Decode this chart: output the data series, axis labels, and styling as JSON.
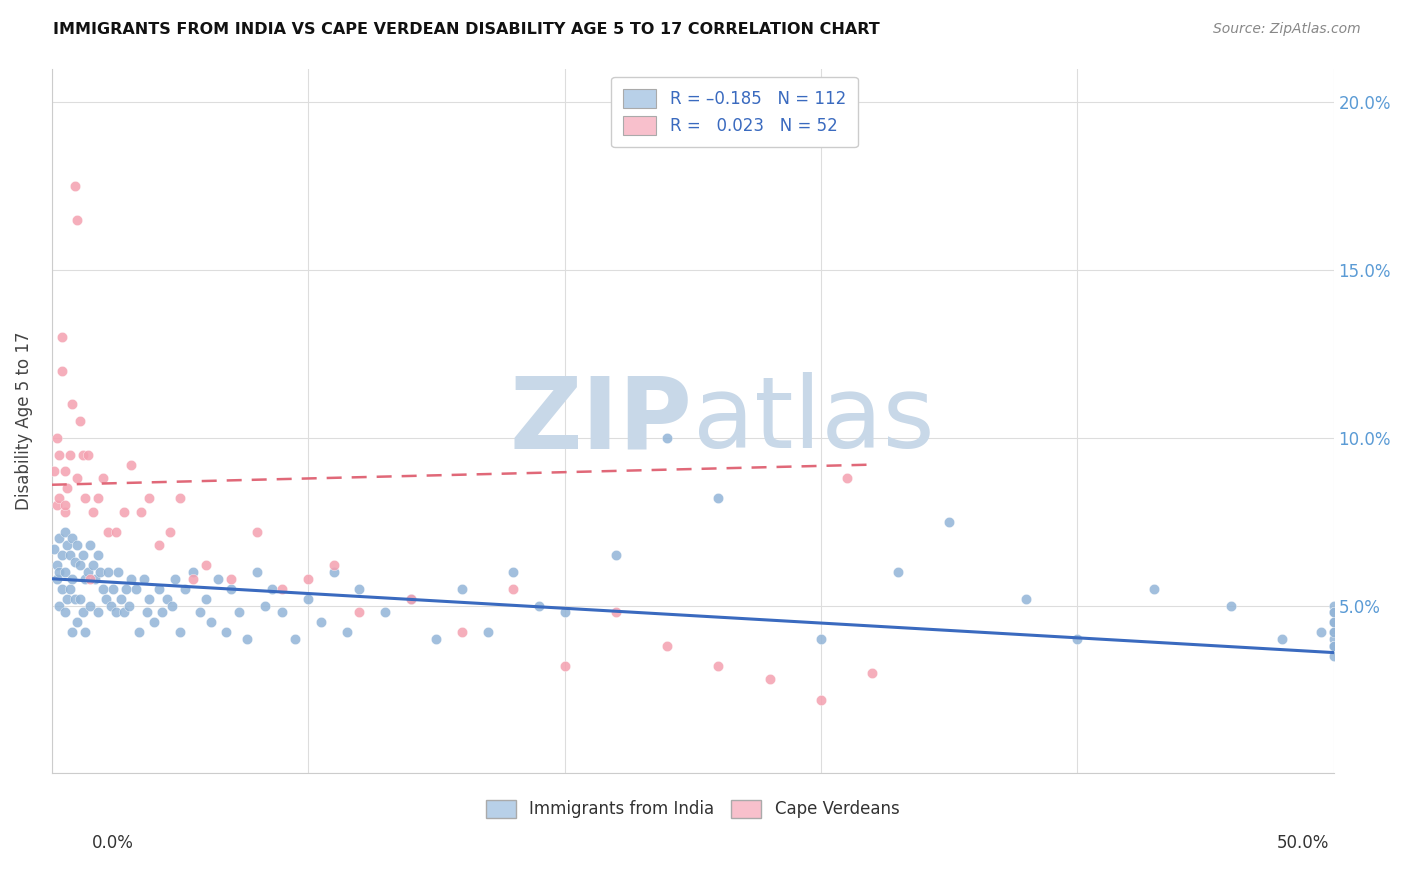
{
  "title": "IMMIGRANTS FROM INDIA VS CAPE VERDEAN DISABILITY AGE 5 TO 17 CORRELATION CHART",
  "source": "Source: ZipAtlas.com",
  "ylabel": "Disability Age 5 to 17",
  "ytick_values": [
    0.0,
    0.05,
    0.1,
    0.15,
    0.2
  ],
  "ytick_labels": [
    "",
    "5.0%",
    "10.0%",
    "15.0%",
    "20.0%"
  ],
  "xtick_values": [
    0.0,
    0.1,
    0.2,
    0.3,
    0.4,
    0.5
  ],
  "xlim": [
    0.0,
    0.5
  ],
  "ylim": [
    0.0,
    0.21
  ],
  "india_color": "#92b4d7",
  "cape_color": "#f4a0b0",
  "india_line_color": "#3a6abf",
  "cape_line_color": "#e06878",
  "india_legend_color": "#b8d0e8",
  "cape_legend_color": "#f8c0cc",
  "watermark_zip_color": "#c8d8e8",
  "watermark_atlas_color": "#c8d8e8",
  "grid_color": "#dddddd",
  "axis_color": "#cccccc",
  "right_yaxis_color": "#5b9bd5",
  "india_line_start_y": 0.058,
  "india_line_end_y": 0.036,
  "cape_line_start_y": 0.086,
  "cape_line_end_y": 0.092,
  "cape_line_end_x": 0.32,
  "india_scatter_x": [
    0.001,
    0.002,
    0.002,
    0.003,
    0.003,
    0.003,
    0.004,
    0.004,
    0.005,
    0.005,
    0.005,
    0.006,
    0.006,
    0.007,
    0.007,
    0.008,
    0.008,
    0.008,
    0.009,
    0.009,
    0.01,
    0.01,
    0.011,
    0.011,
    0.012,
    0.012,
    0.013,
    0.013,
    0.014,
    0.015,
    0.015,
    0.016,
    0.017,
    0.018,
    0.018,
    0.019,
    0.02,
    0.021,
    0.022,
    0.023,
    0.024,
    0.025,
    0.026,
    0.027,
    0.028,
    0.029,
    0.03,
    0.031,
    0.033,
    0.034,
    0.036,
    0.037,
    0.038,
    0.04,
    0.042,
    0.043,
    0.045,
    0.047,
    0.048,
    0.05,
    0.052,
    0.055,
    0.058,
    0.06,
    0.062,
    0.065,
    0.068,
    0.07,
    0.073,
    0.076,
    0.08,
    0.083,
    0.086,
    0.09,
    0.095,
    0.1,
    0.105,
    0.11,
    0.115,
    0.12,
    0.13,
    0.14,
    0.15,
    0.16,
    0.17,
    0.18,
    0.19,
    0.2,
    0.22,
    0.24,
    0.26,
    0.3,
    0.33,
    0.35,
    0.38,
    0.4,
    0.43,
    0.46,
    0.48,
    0.495,
    0.5,
    0.5,
    0.5,
    0.5,
    0.5,
    0.5,
    0.5,
    0.5,
    0.5,
    0.5,
    0.5,
    0.5
  ],
  "india_scatter_y": [
    0.067,
    0.062,
    0.058,
    0.07,
    0.06,
    0.05,
    0.065,
    0.055,
    0.072,
    0.06,
    0.048,
    0.068,
    0.052,
    0.065,
    0.055,
    0.07,
    0.058,
    0.042,
    0.063,
    0.052,
    0.068,
    0.045,
    0.062,
    0.052,
    0.065,
    0.048,
    0.058,
    0.042,
    0.06,
    0.068,
    0.05,
    0.062,
    0.058,
    0.065,
    0.048,
    0.06,
    0.055,
    0.052,
    0.06,
    0.05,
    0.055,
    0.048,
    0.06,
    0.052,
    0.048,
    0.055,
    0.05,
    0.058,
    0.055,
    0.042,
    0.058,
    0.048,
    0.052,
    0.045,
    0.055,
    0.048,
    0.052,
    0.05,
    0.058,
    0.042,
    0.055,
    0.06,
    0.048,
    0.052,
    0.045,
    0.058,
    0.042,
    0.055,
    0.048,
    0.04,
    0.06,
    0.05,
    0.055,
    0.048,
    0.04,
    0.052,
    0.045,
    0.06,
    0.042,
    0.055,
    0.048,
    0.052,
    0.04,
    0.055,
    0.042,
    0.06,
    0.05,
    0.048,
    0.065,
    0.1,
    0.082,
    0.04,
    0.06,
    0.075,
    0.052,
    0.04,
    0.055,
    0.05,
    0.04,
    0.042,
    0.05,
    0.048,
    0.045,
    0.042,
    0.04,
    0.038,
    0.048,
    0.045,
    0.042,
    0.038,
    0.035,
    0.038
  ],
  "cape_scatter_x": [
    0.001,
    0.002,
    0.002,
    0.003,
    0.003,
    0.004,
    0.004,
    0.005,
    0.005,
    0.006,
    0.007,
    0.008,
    0.009,
    0.01,
    0.011,
    0.012,
    0.013,
    0.014,
    0.016,
    0.018,
    0.02,
    0.022,
    0.025,
    0.028,
    0.031,
    0.035,
    0.038,
    0.042,
    0.046,
    0.05,
    0.055,
    0.06,
    0.07,
    0.08,
    0.09,
    0.1,
    0.11,
    0.12,
    0.14,
    0.16,
    0.18,
    0.2,
    0.22,
    0.24,
    0.26,
    0.28,
    0.3,
    0.31,
    0.32,
    0.005,
    0.01,
    0.015
  ],
  "cape_scatter_y": [
    0.09,
    0.1,
    0.08,
    0.095,
    0.082,
    0.12,
    0.13,
    0.09,
    0.078,
    0.085,
    0.095,
    0.11,
    0.175,
    0.165,
    0.105,
    0.095,
    0.082,
    0.095,
    0.078,
    0.082,
    0.088,
    0.072,
    0.072,
    0.078,
    0.092,
    0.078,
    0.082,
    0.068,
    0.072,
    0.082,
    0.058,
    0.062,
    0.058,
    0.072,
    0.055,
    0.058,
    0.062,
    0.048,
    0.052,
    0.042,
    0.055,
    0.032,
    0.048,
    0.038,
    0.032,
    0.028,
    0.022,
    0.088,
    0.03,
    0.08,
    0.088,
    0.058
  ]
}
